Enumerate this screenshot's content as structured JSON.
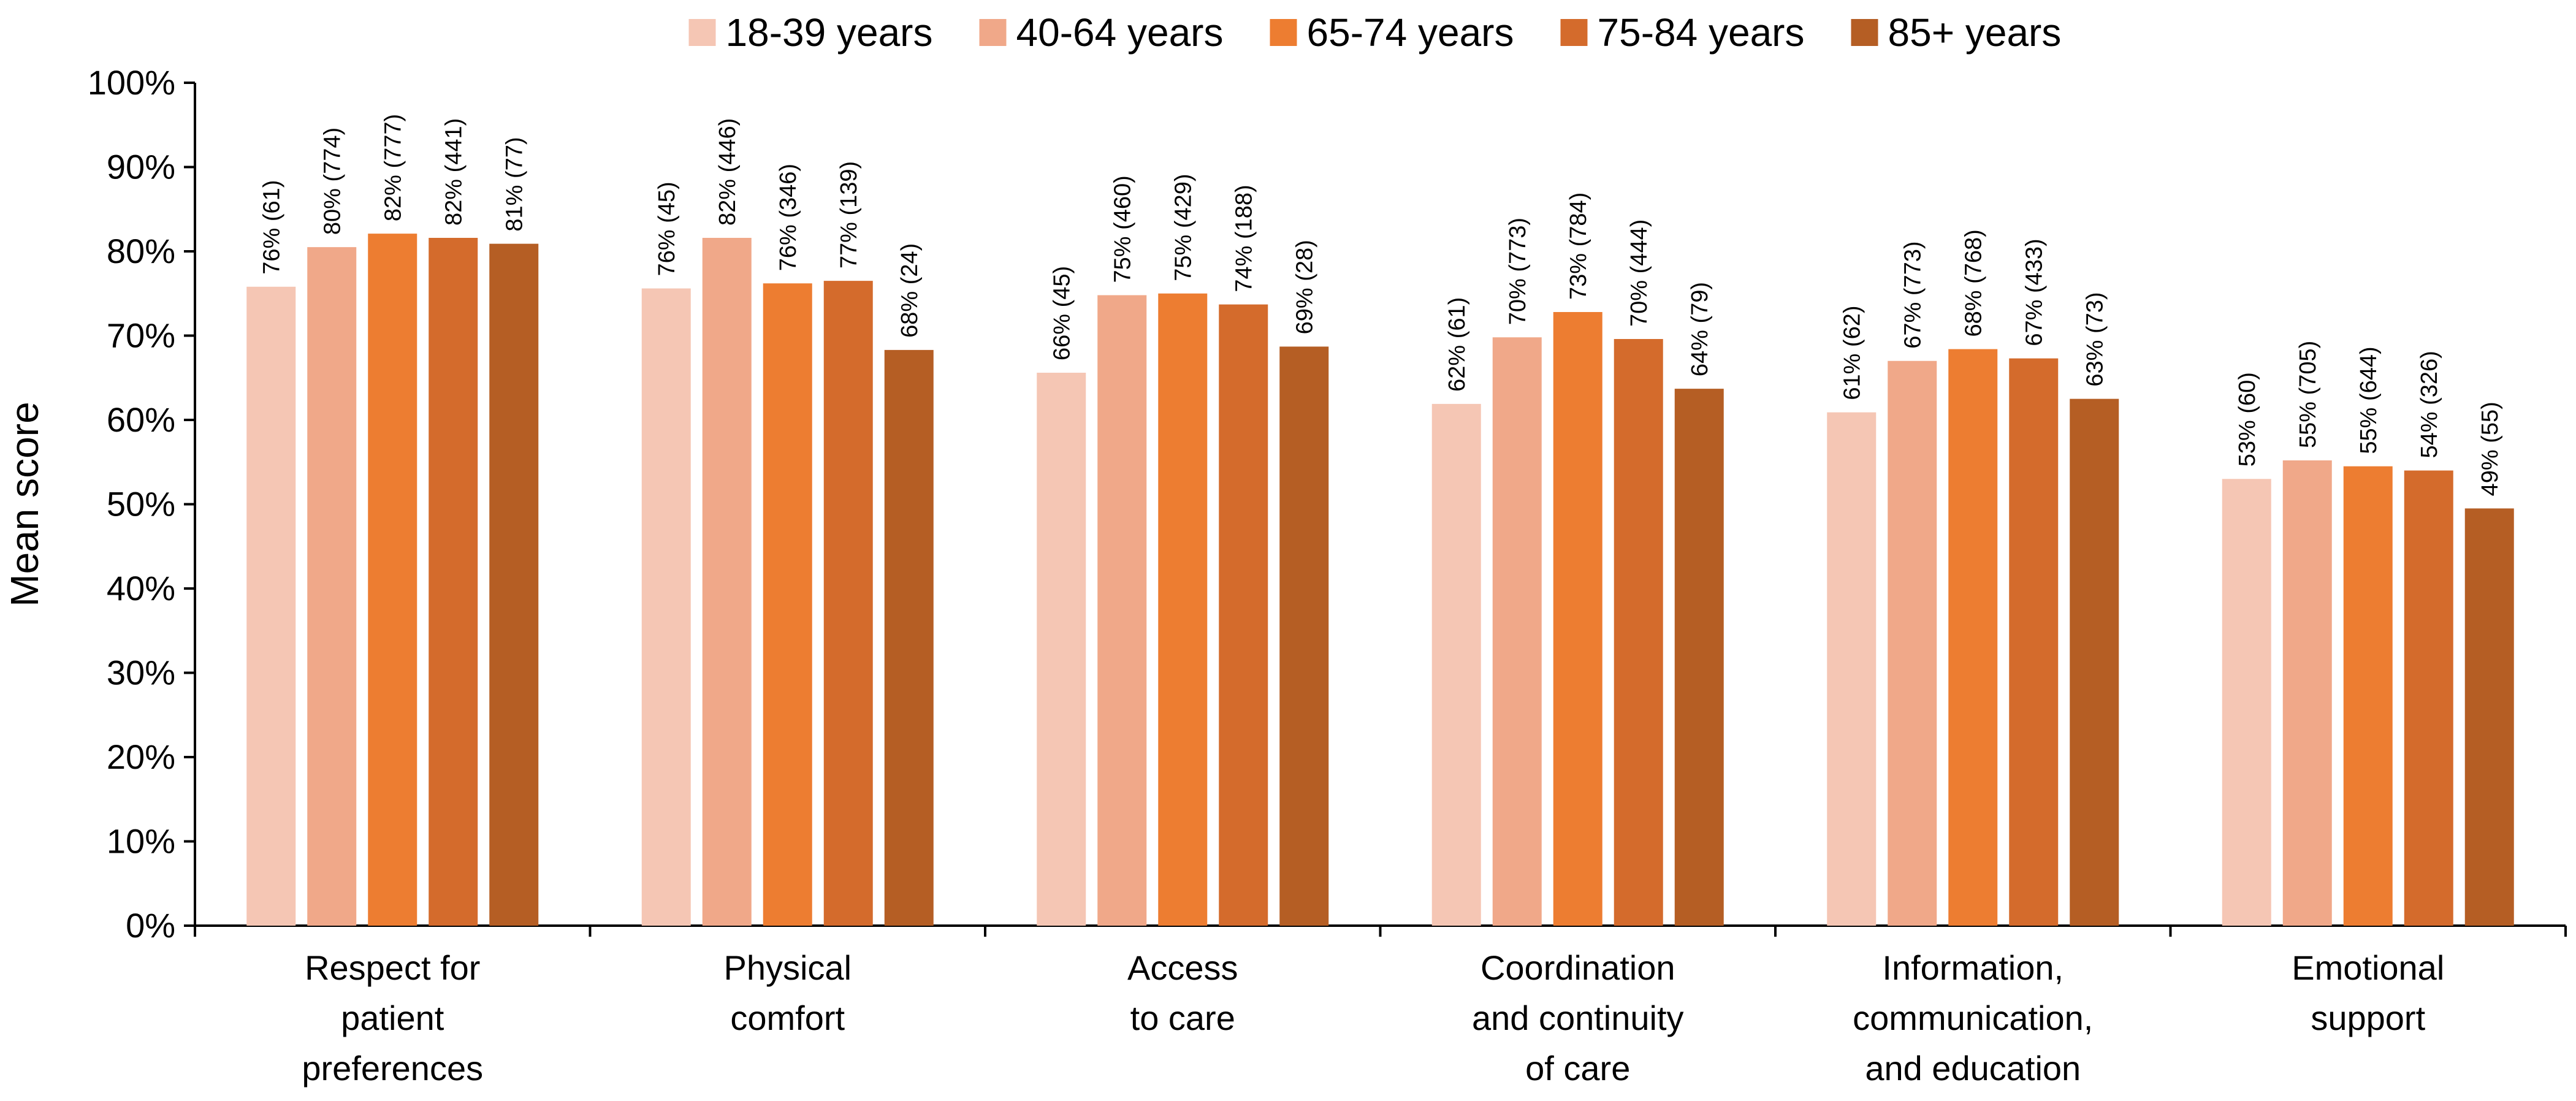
{
  "chart_data": {
    "type": "bar",
    "title": "",
    "xlabel": "",
    "ylabel": "Mean score",
    "ylim": [
      0,
      100
    ],
    "yticks": [
      "0%",
      "10%",
      "20%",
      "30%",
      "40%",
      "50%",
      "60%",
      "70%",
      "80%",
      "90%",
      "100%"
    ],
    "grid": false,
    "legend_position": "top",
    "categories": [
      [
        "Respect for",
        "patient",
        "preferences"
      ],
      [
        "Physical",
        "comfort"
      ],
      [
        "Access",
        "to care"
      ],
      [
        "Coordination",
        "and continuity",
        "of care"
      ],
      [
        "Information,",
        "communication,",
        "and education"
      ],
      [
        "Emotional",
        "support"
      ]
    ],
    "series": [
      {
        "name": "18-39 years",
        "color": "#F5C6B4",
        "values": [
          75.8,
          75.6,
          65.6,
          61.9,
          60.9,
          53.0
        ],
        "labels": [
          "76% (61)",
          "76% (45)",
          "66% (45)",
          "62% (61)",
          "61% (62)",
          "53% (60)"
        ]
      },
      {
        "name": "40-64 years",
        "color": "#F0A889",
        "values": [
          80.5,
          81.6,
          74.8,
          69.8,
          67.0,
          55.2
        ],
        "labels": [
          "80% (774)",
          "82% (446)",
          "75% (460)",
          "70% (773)",
          "67% (773)",
          "55% (705)"
        ]
      },
      {
        "name": "65-74 years",
        "color": "#ED7D31",
        "values": [
          82.1,
          76.2,
          75.0,
          72.8,
          68.4,
          54.5
        ],
        "labels": [
          "82% (777)",
          "76% (346)",
          "75% (429)",
          "73% (784)",
          "68% (768)",
          "55% (644)"
        ]
      },
      {
        "name": "75-84 years",
        "color": "#D46B2C",
        "values": [
          81.6,
          76.5,
          73.7,
          69.6,
          67.3,
          54.0
        ],
        "labels": [
          "82% (441)",
          "77% (139)",
          "74% (188)",
          "70% (444)",
          "67% (433)",
          "54% (326)"
        ]
      },
      {
        "name": "85+ years",
        "color": "#B55E24",
        "values": [
          80.9,
          68.3,
          68.7,
          63.7,
          62.5,
          49.5
        ],
        "labels": [
          "81% (77)",
          "68% (24)",
          "69% (28)",
          "64% (79)",
          "63% (73)",
          "49% (55)"
        ]
      }
    ]
  }
}
